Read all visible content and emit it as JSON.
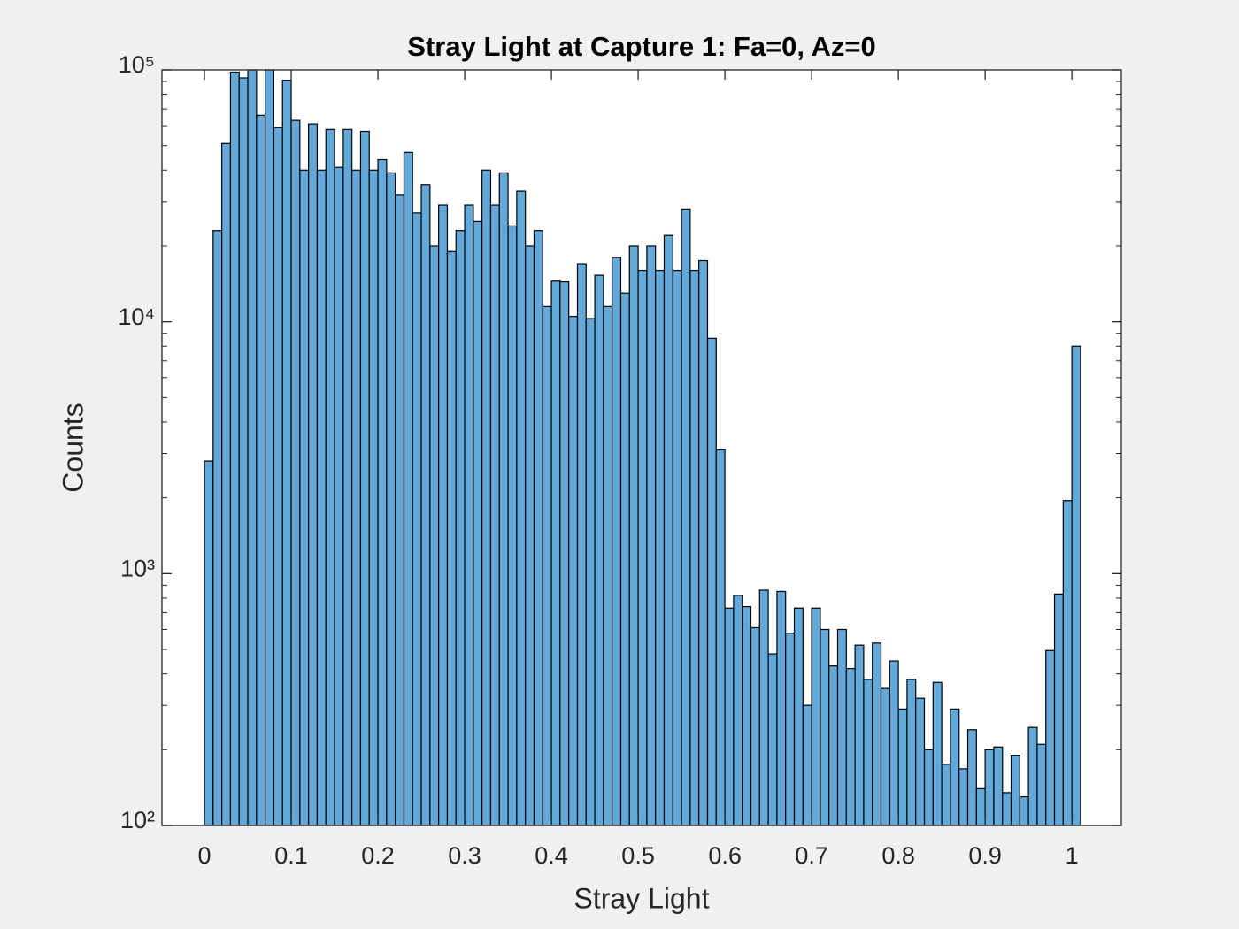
{
  "chart_data": {
    "type": "histogram",
    "title": "Stray Light at Capture 1: Fa=0, Az=0",
    "x_label": "Stray Light",
    "y_label": "Counts",
    "bins": [
      0,
      0.01,
      0.02,
      0.03,
      0.04,
      0.05,
      0.06,
      0.07,
      0.08,
      0.09,
      0.1,
      0.11,
      0.12,
      0.13,
      0.14,
      0.15,
      0.16,
      0.17,
      0.18,
      0.19,
      0.2,
      0.21,
      0.22,
      0.23,
      0.24,
      0.25,
      0.26,
      0.27,
      0.28,
      0.29,
      0.3,
      0.31,
      0.32,
      0.33,
      0.34,
      0.35,
      0.36,
      0.37,
      0.38,
      0.39,
      0.4,
      0.41,
      0.42,
      0.43,
      0.44,
      0.45,
      0.46,
      0.47,
      0.48,
      0.49,
      0.5,
      0.51,
      0.52,
      0.53,
      0.54,
      0.55,
      0.56,
      0.57,
      0.58,
      0.59,
      0.6,
      0.61,
      0.62,
      0.63,
      0.64,
      0.65,
      0.66,
      0.67,
      0.68,
      0.69,
      0.7,
      0.71,
      0.72,
      0.73,
      0.74,
      0.75,
      0.76,
      0.77,
      0.78,
      0.79,
      0.8,
      0.81,
      0.82,
      0.83,
      0.84,
      0.85,
      0.86,
      0.87,
      0.88,
      0.89,
      0.9,
      0.91,
      0.92,
      0.93,
      0.94,
      0.95,
      0.96,
      0.97,
      0.98,
      0.99,
      1,
      1.01
    ],
    "values": [
      2800,
      23000,
      51000,
      98000,
      93000,
      100000,
      66000,
      100000,
      59000,
      91000,
      63000,
      40000,
      61000,
      40000,
      58000,
      41000,
      58000,
      40000,
      57000,
      40000,
      44000,
      39000,
      32000,
      47000,
      27000,
      35000,
      20000,
      29000,
      19000,
      23000,
      29000,
      25000,
      40000,
      29000,
      39000,
      24000,
      33000,
      20000,
      23000,
      11500,
      14500,
      14400,
      10500,
      17000,
      10300,
      15300,
      11500,
      18000,
      13000,
      20000,
      16000,
      20000,
      16000,
      22000,
      16000,
      28000,
      16000,
      17500,
      8600,
      3100,
      730,
      820,
      740,
      610,
      860,
      480,
      850,
      580,
      730,
      300,
      730,
      600,
      430,
      600,
      420,
      520,
      380,
      530,
      350,
      450,
      290,
      380,
      320,
      200,
      370,
      175,
      290,
      168,
      240,
      140,
      200,
      205,
      135,
      190,
      130,
      245,
      210,
      495,
      830,
      1950,
      8000
    ],
    "color": "#62a8d8",
    "xlim": [
      -0.049,
      1.057
    ],
    "xticks": [
      0,
      0.1,
      0.2,
      0.3,
      0.4,
      0.5,
      0.6,
      0.7,
      0.8,
      0.9,
      1
    ],
    "ylim": [
      100,
      100000
    ],
    "yscale": "log",
    "yticks": [
      {
        "value": 100,
        "label": "10²"
      },
      {
        "value": 1000,
        "label": "10³"
      },
      {
        "value": 10000,
        "label": "10⁴"
      },
      {
        "value": 100000,
        "label": "10⁵"
      }
    ]
  }
}
